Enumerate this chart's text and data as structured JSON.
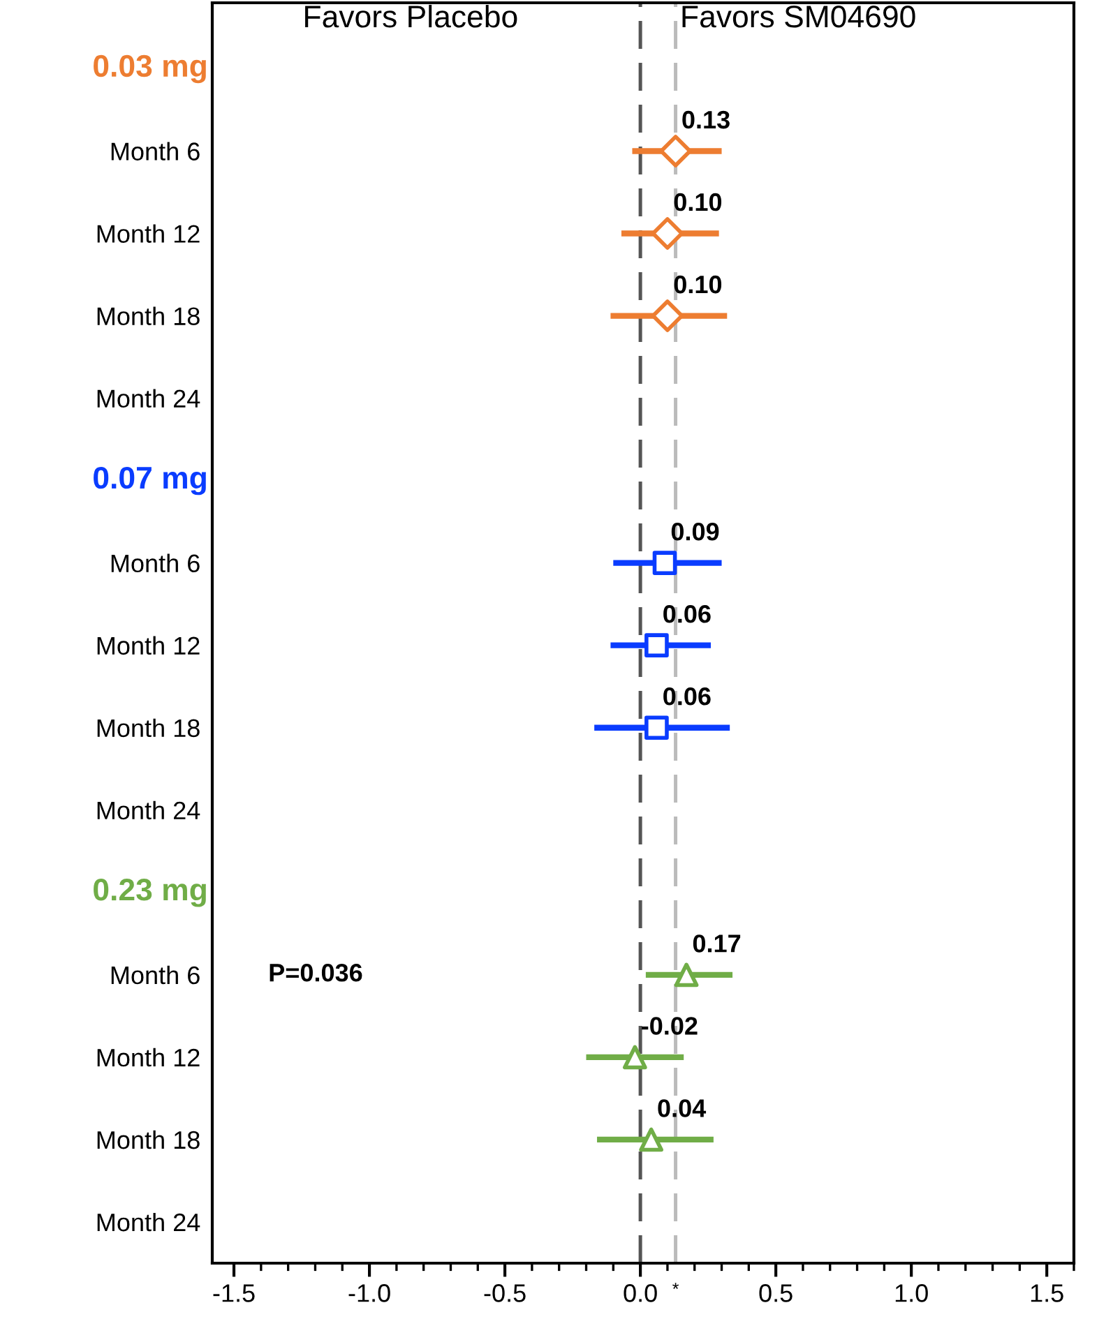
{
  "chart_data": {
    "type": "scatter",
    "orientation": "horizontal",
    "categories": [
      null,
      "Month 6",
      "Month 12",
      "Month 18",
      "Month 24",
      null,
      "Month 6",
      "Month 12",
      "Month 18",
      "Month 24",
      null,
      "Month 6",
      "Month 12",
      "Month 18",
      "Month 24"
    ],
    "series": [
      {
        "name": "0.03 mg",
        "color": "#ed7d31",
        "marker": "diamond",
        "values": [
          null,
          0.13,
          0.1,
          0.1,
          null,
          null,
          null,
          null,
          null,
          null,
          null,
          null,
          null,
          null,
          null
        ],
        "errors": [
          null,
          [
            -0.03,
            0.3
          ],
          [
            -0.07,
            0.29
          ],
          [
            -0.11,
            0.32
          ],
          null,
          null,
          null,
          null,
          null,
          null,
          null,
          null,
          null,
          null,
          null
        ],
        "value_labels": [
          null,
          "0.13",
          "0.10",
          "0.10",
          null,
          null,
          null,
          null,
          null,
          null,
          null,
          null,
          null,
          null,
          null
        ]
      },
      {
        "name": "0.07 mg",
        "color": "#0a3cff",
        "marker": "square",
        "values": [
          null,
          null,
          null,
          null,
          null,
          null,
          0.09,
          0.06,
          0.06,
          null,
          null,
          null,
          null,
          null,
          null
        ],
        "errors": [
          null,
          null,
          null,
          null,
          null,
          null,
          [
            -0.1,
            0.3
          ],
          [
            -0.11,
            0.26
          ],
          [
            -0.17,
            0.33
          ],
          null,
          null,
          null,
          null,
          null,
          null
        ],
        "value_labels": [
          null,
          null,
          null,
          null,
          null,
          null,
          "0.09",
          "0.06",
          "0.06",
          null,
          null,
          null,
          null,
          null,
          null
        ]
      },
      {
        "name": "0.23 mg",
        "color": "#70ad47",
        "marker": "triangle",
        "values": [
          null,
          null,
          null,
          null,
          null,
          null,
          null,
          null,
          null,
          null,
          null,
          0.17,
          -0.02,
          0.04,
          null
        ],
        "errors": [
          null,
          null,
          null,
          null,
          null,
          null,
          null,
          null,
          null,
          null,
          null,
          [
            0.02,
            0.34
          ],
          [
            -0.2,
            0.16
          ],
          [
            -0.16,
            0.27
          ],
          null
        ],
        "value_labels": [
          null,
          null,
          null,
          null,
          null,
          null,
          null,
          null,
          null,
          null,
          null,
          "0.17",
          "-0.02",
          "0.04",
          null
        ]
      }
    ],
    "xlim": [
      -1.58,
      1.6
    ],
    "xticks": [
      {
        "value": -1.5,
        "label": "-1.5"
      },
      {
        "value": -1.0,
        "label": "-1.0"
      },
      {
        "value": -0.5,
        "label": "-0.5"
      },
      {
        "value": 0.0,
        "label": "0.0"
      },
      {
        "value": 0.5,
        "label": "0.5"
      },
      {
        "value": 1.0,
        "label": "1.0"
      },
      {
        "value": 1.5,
        "label": "1.5"
      }
    ],
    "ref_lines": [
      {
        "axis": "x",
        "value": 0,
        "color": "#555555",
        "line_style": "dashed"
      },
      {
        "axis": "x",
        "value": 0.13,
        "color": "#bbbbbb",
        "line_style": "dashed",
        "label": "*"
      }
    ],
    "annotations": [
      "Favors Placebo",
      "Favors SM04690",
      "P=0.036"
    ],
    "grid": false,
    "legend": false
  }
}
